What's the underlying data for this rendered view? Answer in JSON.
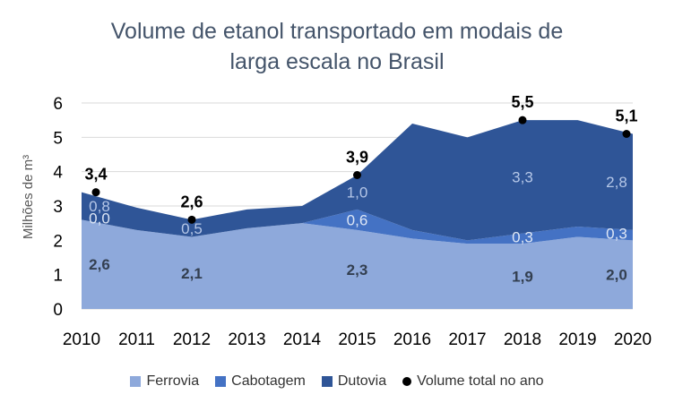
{
  "chart_data": {
    "type": "area",
    "title_line1": "Volume de etanol transportado em modais de",
    "title_line2": "larga escala no Brasil",
    "ylabel": "Milhões de m³",
    "xlabel": "",
    "ylim": [
      0,
      6
    ],
    "yticks": [
      0,
      1,
      2,
      3,
      4,
      5,
      6
    ],
    "x": [
      "2010",
      "2011",
      "2012",
      "2013",
      "2014",
      "2015",
      "2016",
      "2017",
      "2018",
      "2019",
      "2020"
    ],
    "grid": true,
    "stacked": true,
    "series": [
      {
        "name": "Ferrovia",
        "color": "#8EA9DB",
        "values": [
          2.6,
          2.3,
          2.1,
          2.35,
          2.5,
          2.3,
          2.05,
          1.9,
          1.9,
          2.1,
          2.0
        ]
      },
      {
        "name": "Cabotagem",
        "color": "#4472C4",
        "values": [
          0.0,
          0.0,
          0.0,
          0.0,
          0.0,
          0.6,
          0.25,
          0.1,
          0.3,
          0.3,
          0.3
        ]
      },
      {
        "name": "Dutovia",
        "color": "#2F5597",
        "values": [
          0.8,
          0.65,
          0.5,
          0.55,
          0.5,
          1.0,
          3.1,
          3.0,
          3.3,
          3.1,
          2.8
        ]
      }
    ],
    "totals": {
      "name": "Volume total no ano",
      "values": [
        3.4,
        null,
        2.6,
        null,
        null,
        3.9,
        null,
        null,
        5.5,
        null,
        5.1
      ]
    },
    "data_labels": [
      {
        "series": "Ferrovia",
        "x": "2010",
        "text": "2,6"
      },
      {
        "series": "Ferrovia",
        "x": "2012",
        "text": "2,1"
      },
      {
        "series": "Ferrovia",
        "x": "2015",
        "text": "2,3"
      },
      {
        "series": "Ferrovia",
        "x": "2018",
        "text": "1,9"
      },
      {
        "series": "Ferrovia",
        "x": "2020",
        "text": "2,0"
      },
      {
        "series": "Cabotagem",
        "x": "2010",
        "text": "0,0"
      },
      {
        "series": "Cabotagem",
        "x": "2015",
        "text": "0,6"
      },
      {
        "series": "Cabotagem",
        "x": "2018",
        "text": "0,3"
      },
      {
        "series": "Cabotagem",
        "x": "2020",
        "text": "0,3"
      },
      {
        "series": "Dutovia",
        "x": "2010",
        "text": "0,8"
      },
      {
        "series": "Dutovia",
        "x": "2012",
        "text": "0,5"
      },
      {
        "series": "Dutovia",
        "x": "2015",
        "text": "1,0"
      },
      {
        "series": "Dutovia",
        "x": "2018",
        "text": "3,3"
      },
      {
        "series": "Dutovia",
        "x": "2020",
        "text": "2,8"
      },
      {
        "series": "Volume total no ano",
        "x": "2010",
        "text": "3,4"
      },
      {
        "series": "Volume total no ano",
        "x": "2012",
        "text": "2,6"
      },
      {
        "series": "Volume total no ano",
        "x": "2015",
        "text": "3,9"
      },
      {
        "series": "Volume total no ano",
        "x": "2018",
        "text": "5,5"
      },
      {
        "series": "Volume total no ano",
        "x": "2020",
        "text": "5,1"
      }
    ],
    "legend": [
      "Ferrovia",
      "Cabotagem",
      "Dutovia",
      "Volume total no ano"
    ],
    "legend_position": "bottom"
  }
}
